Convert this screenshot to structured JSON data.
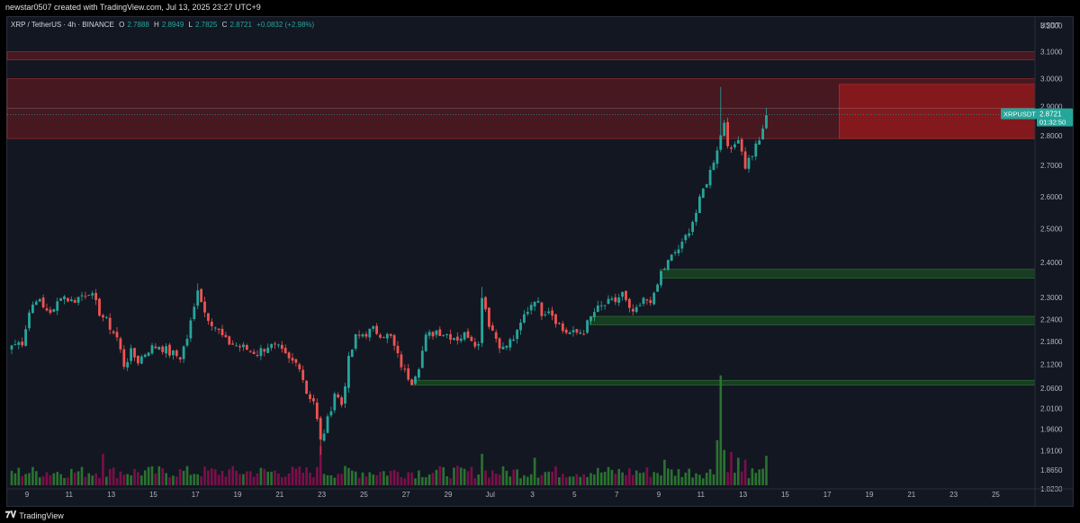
{
  "header": {
    "attribution": "newstar0507 created with TradingView.com, Jul 13, 2025 23:27 UTC+9"
  },
  "legend": {
    "symbol": "XRP / TetherUS · 4h · BINANCE",
    "open_label": "O",
    "open": "2.7888",
    "high_label": "H",
    "high": "2.8949",
    "low_label": "L",
    "low": "2.7825",
    "close_label": "C",
    "close": "2.8721",
    "change": "+0.0832 (+2.98%)"
  },
  "price_label": {
    "ticker": "XRPUSDT",
    "price": "2.8721",
    "countdown": "01:32:50"
  },
  "footer": {
    "brand": "TradingView",
    "logo_glyph": "𝟕𝐕"
  },
  "colors": {
    "up": "#26a69a",
    "down": "#ef5350",
    "resistance_zone": "#b71c1c",
    "support_zone": "#1b5e20",
    "background": "#131722"
  },
  "chart_data": {
    "type": "candlestick",
    "currency_label": "USDT",
    "y_axis": {
      "scale": "log",
      "ylim": [
        1.823,
        3.23
      ],
      "ticks": [
        "3.2000",
        "3.1000",
        "3.0000",
        "2.9000",
        "2.8000",
        "2.7000",
        "2.6000",
        "2.5000",
        "2.4000",
        "2.3000",
        "2.2400",
        "2.1800",
        "2.1200",
        "2.0600",
        "2.0100",
        "1.9600",
        "1.9100",
        "1.8650",
        "1.8230"
      ]
    },
    "x_axis": {
      "ticks": [
        "9",
        "11",
        "13",
        "15",
        "17",
        "19",
        "21",
        "23",
        "25",
        "27",
        "29",
        "Jul",
        "3",
        "5",
        "7",
        "9",
        "11",
        "13",
        "15",
        "17",
        "19",
        "21",
        "23",
        "25"
      ]
    },
    "zones": [
      {
        "kind": "resistance",
        "from_bar": 0,
        "to_bar": "end",
        "low": 3.07,
        "high": 3.1
      },
      {
        "kind": "resistance",
        "from_bar": 0,
        "to_bar": "end",
        "low": 2.79,
        "high": 3.0
      },
      {
        "kind": "resistance",
        "from_bar": 237,
        "to_bar": "end",
        "low": 2.79,
        "high": 2.98
      },
      {
        "kind": "support",
        "from_bar": 186,
        "to_bar": "end",
        "low": 2.355,
        "high": 2.38
      },
      {
        "kind": "support",
        "from_bar": 166,
        "to_bar": "end",
        "low": 2.225,
        "high": 2.248
      },
      {
        "kind": "support",
        "from_bar": 115,
        "to_bar": "end",
        "low": 2.068,
        "high": 2.08
      }
    ],
    "anchors": [
      [
        0,
        2.17
      ],
      [
        3,
        2.18
      ],
      [
        5,
        2.26
      ],
      [
        7,
        2.3
      ],
      [
        9,
        2.27
      ],
      [
        12,
        2.26
      ],
      [
        14,
        2.31
      ],
      [
        17,
        2.29
      ],
      [
        19,
        2.3
      ],
      [
        22,
        2.32
      ],
      [
        25,
        2.26
      ],
      [
        28,
        2.22
      ],
      [
        30,
        2.19
      ],
      [
        32,
        2.12
      ],
      [
        34,
        2.15
      ],
      [
        36,
        2.13
      ],
      [
        39,
        2.16
      ],
      [
        42,
        2.17
      ],
      [
        45,
        2.15
      ],
      [
        48,
        2.14
      ],
      [
        50,
        2.19
      ],
      [
        52,
        2.27
      ],
      [
        53,
        2.33
      ],
      [
        55,
        2.26
      ],
      [
        58,
        2.22
      ],
      [
        61,
        2.18
      ],
      [
        64,
        2.17
      ],
      [
        67,
        2.16
      ],
      [
        70,
        2.15
      ],
      [
        73,
        2.17
      ],
      [
        76,
        2.16
      ],
      [
        79,
        2.13
      ],
      [
        82,
        2.12
      ],
      [
        84,
        2.05
      ],
      [
        86,
        2.03
      ],
      [
        88,
        1.93
      ],
      [
        90,
        1.98
      ],
      [
        92,
        2.05
      ],
      [
        94,
        2.02
      ],
      [
        96,
        2.13
      ],
      [
        98,
        2.19
      ],
      [
        100,
        2.2
      ],
      [
        103,
        2.21
      ],
      [
        106,
        2.2
      ],
      [
        108,
        2.19
      ],
      [
        110,
        2.14
      ],
      [
        112,
        2.1
      ],
      [
        114,
        2.08
      ],
      [
        116,
        2.12
      ],
      [
        118,
        2.19
      ],
      [
        121,
        2.21
      ],
      [
        124,
        2.2
      ],
      [
        127,
        2.19
      ],
      [
        130,
        2.2
      ],
      [
        133,
        2.17
      ],
      [
        134,
        2.31
      ],
      [
        136,
        2.23
      ],
      [
        138,
        2.19
      ],
      [
        140,
        2.16
      ],
      [
        142,
        2.18
      ],
      [
        144,
        2.2
      ],
      [
        146,
        2.25
      ],
      [
        149,
        2.3
      ],
      [
        151,
        2.26
      ],
      [
        153,
        2.27
      ],
      [
        155,
        2.24
      ],
      [
        157,
        2.21
      ],
      [
        160,
        2.2
      ],
      [
        163,
        2.21
      ],
      [
        166,
        2.26
      ],
      [
        169,
        2.28
      ],
      [
        172,
        2.29
      ],
      [
        174,
        2.31
      ],
      [
        176,
        2.26
      ],
      [
        178,
        2.26
      ],
      [
        180,
        2.29
      ],
      [
        183,
        2.3
      ],
      [
        185,
        2.37
      ],
      [
        187,
        2.4
      ],
      [
        189,
        2.43
      ],
      [
        191,
        2.45
      ],
      [
        193,
        2.5
      ],
      [
        195,
        2.55
      ],
      [
        197,
        2.62
      ],
      [
        199,
        2.68
      ],
      [
        201,
        2.76
      ],
      [
        202,
        2.8
      ],
      [
        203,
        2.85
      ],
      [
        204,
        2.78
      ],
      [
        205,
        2.74
      ],
      [
        207,
        2.8
      ],
      [
        209,
        2.7
      ],
      [
        211,
        2.74
      ],
      [
        213,
        2.79
      ],
      [
        214,
        2.81
      ],
      [
        215,
        2.87
      ]
    ],
    "spikes": [
      {
        "bar": 53,
        "high": 2.34
      },
      {
        "bar": 88,
        "low": 1.9
      },
      {
        "bar": 134,
        "high": 2.33
      },
      {
        "bar": 202,
        "high": 2.97
      },
      {
        "bar": 215,
        "high": 2.895
      }
    ],
    "volume": {
      "bars": 216,
      "peak_bar": 202,
      "peak_ratio": 5.6,
      "notable": [
        [
          201,
          2.3
        ],
        [
          203,
          1.8
        ],
        [
          205,
          1.7
        ],
        [
          207,
          1.4
        ],
        [
          209,
          1.3
        ],
        [
          88,
          2.0
        ],
        [
          26,
          1.6
        ],
        [
          134,
          1.6
        ],
        [
          149,
          1.4
        ],
        [
          186,
          1.3
        ],
        [
          215,
          1.5
        ]
      ]
    }
  }
}
